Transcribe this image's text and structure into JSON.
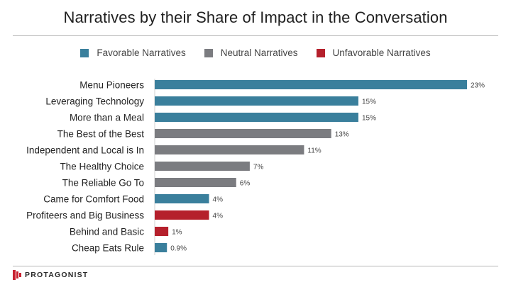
{
  "chart_data": {
    "type": "bar",
    "orientation": "horizontal",
    "title": "Narratives by their Share of Impact in the Conversation",
    "legend": [
      {
        "name": "Favorable Narratives",
        "color": "#3a7f9c"
      },
      {
        "name": "Neutral Narratives",
        "color": "#7b7c80"
      },
      {
        "name": "Unfavorable Narratives",
        "color": "#b5202c"
      }
    ],
    "legend_position": "top",
    "xlim": [
      0,
      23
    ],
    "grid": false,
    "bars": [
      {
        "category": "Menu Pioneers",
        "value": 23,
        "label": "23%",
        "group": "Favorable Narratives"
      },
      {
        "category": "Leveraging Technology",
        "value": 15,
        "label": "15%",
        "group": "Favorable Narratives"
      },
      {
        "category": "More than a Meal",
        "value": 15,
        "label": "15%",
        "group": "Favorable Narratives"
      },
      {
        "category": "The Best of the Best",
        "value": 13,
        "label": "13%",
        "group": "Neutral Narratives"
      },
      {
        "category": "Independent and Local is In",
        "value": 11,
        "label": "11%",
        "group": "Neutral Narratives"
      },
      {
        "category": "The Healthy Choice",
        "value": 7,
        "label": "7%",
        "group": "Neutral Narratives"
      },
      {
        "category": "The Reliable Go To",
        "value": 6,
        "label": "6%",
        "group": "Neutral Narratives"
      },
      {
        "category": "Came for Comfort Food",
        "value": 4,
        "label": "4%",
        "group": "Favorable Narratives"
      },
      {
        "category": "Profiteers and Big Business",
        "value": 4,
        "label": "4%",
        "group": "Unfavorable Narratives"
      },
      {
        "category": "Behind and Basic",
        "value": 1,
        "label": "1%",
        "group": "Unfavorable Narratives"
      },
      {
        "category": "Cheap Eats Rule",
        "value": 0.9,
        "label": "0.9%",
        "group": "Favorable Narratives"
      }
    ]
  },
  "footer": {
    "logo_text": "PROTAGONIST",
    "logo_color": "#c8202f"
  }
}
